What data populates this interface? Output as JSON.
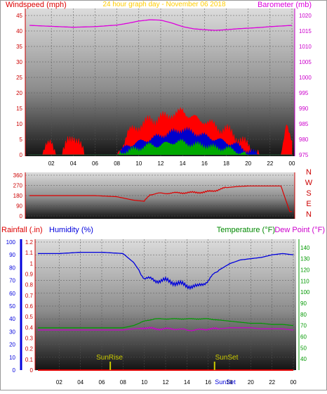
{
  "header": {
    "left_label": "Windspeed (mph)",
    "center_label": "24 hour graph day - November 06 2018",
    "right_label": "Barometer (mb)"
  },
  "colors": {
    "wind_red": "#ff0000",
    "wind_blue": "#0000cc",
    "wind_green": "#00aa00",
    "baro": "#dd00dd",
    "direction": "#dd0000",
    "rain": "#dd0000",
    "humidity": "#0000dd",
    "temperature": "#009900",
    "dewpoint": "#cc00cc",
    "sun": "#cccc00",
    "title": "#ffcc00"
  },
  "chart_data": [
    {
      "type": "line",
      "name": "wind-baro",
      "x_ticks": [
        "02",
        "04",
        "06",
        "08",
        "10",
        "12",
        "14",
        "16",
        "18",
        "20",
        "22",
        "00"
      ],
      "left_axis": {
        "label": "Windspeed (mph)",
        "range": [
          0,
          45
        ],
        "ticks": [
          "0",
          "5",
          "10",
          "15",
          "20",
          "25",
          "30",
          "35",
          "40",
          "45"
        ]
      },
      "right_axis": {
        "label": "Barometer (mb)",
        "range": [
          975,
          1020
        ],
        "ticks": [
          "975",
          "980",
          "985",
          "990",
          "995",
          "1000",
          "1005",
          "1010",
          "1015",
          "1020"
        ]
      },
      "series": [
        {
          "name": "Barometer (mb)",
          "x": [
            0,
            2,
            4,
            6,
            8,
            9,
            10,
            11,
            12,
            13,
            14,
            15,
            16,
            17,
            18,
            19,
            20,
            21,
            22,
            23,
            24
          ],
          "y": [
            1016.8,
            1016.5,
            1016.2,
            1016.4,
            1016.9,
            1017.5,
            1018.2,
            1018.6,
            1018.5,
            1017.6,
            1016.4,
            1015.7,
            1015.4,
            1015.2,
            1015.4,
            1015.7,
            1015.9,
            1016.1,
            1016.4,
            1016.6,
            1016.8
          ]
        },
        {
          "name": "Wind gust (mph)",
          "x": [
            0,
            1,
            1.5,
            2,
            2.5,
            3,
            3.5,
            4,
            4.5,
            5,
            5.5,
            6,
            7,
            8,
            8.5,
            9,
            9.5,
            10,
            10.5,
            11,
            11.5,
            12,
            12.5,
            13,
            13.5,
            14,
            14.5,
            15,
            15.5,
            16,
            16.5,
            17,
            17.5,
            18,
            18.5,
            19,
            19.5,
            20,
            21,
            22,
            23,
            23.5,
            24
          ],
          "y": [
            0,
            0,
            3,
            3,
            0,
            0,
            4,
            6,
            4,
            0,
            0,
            0,
            0,
            0,
            3,
            7,
            8,
            9,
            10,
            11,
            11,
            12,
            12,
            13,
            13,
            14,
            13,
            12,
            11,
            11,
            10,
            9,
            8,
            8,
            7,
            5,
            4,
            3,
            0,
            0,
            0,
            11,
            3
          ]
        },
        {
          "name": "Wind average (mph)",
          "x": [
            0,
            8,
            9,
            10,
            11,
            12,
            13,
            14,
            15,
            16,
            17,
            18,
            19,
            20,
            21,
            24
          ],
          "y": [
            0,
            0,
            3,
            4,
            5,
            6,
            7,
            8,
            7,
            6,
            5,
            4,
            3,
            1,
            0,
            0
          ]
        },
        {
          "name": "Wind minimum (mph)",
          "x": [
            0,
            8,
            9,
            10,
            11,
            12,
            13,
            14,
            15,
            16,
            17,
            18,
            19,
            20,
            21,
            24
          ],
          "y": [
            0,
            0,
            1,
            2,
            3,
            3,
            4,
            4,
            3,
            3,
            2,
            2,
            1,
            0,
            0,
            0
          ]
        }
      ]
    },
    {
      "type": "line",
      "name": "wind-direction",
      "left_axis": {
        "range": [
          0,
          360
        ],
        "ticks": [
          "0",
          "90",
          "180",
          "270",
          "360"
        ]
      },
      "right_labels": [
        "N",
        "W",
        "S",
        "E",
        "N"
      ],
      "series": [
        {
          "name": "Wind direction (deg)",
          "x": [
            0,
            6,
            8,
            9.5,
            10.5,
            11,
            12,
            14,
            16,
            17,
            18,
            19,
            20,
            21,
            22,
            23,
            23.8,
            24
          ],
          "y": [
            180,
            180,
            170,
            140,
            130,
            190,
            200,
            205,
            210,
            225,
            250,
            260,
            265,
            265,
            265,
            265,
            40,
            40
          ]
        }
      ]
    },
    {
      "type": "line",
      "name": "rain-humidity-temp",
      "labels": {
        "rainfall": "Rainfall (.in)",
        "humidity": "Humidity (%)",
        "temperature": "Temperature (°F)",
        "dewpoint": "Dew Point (°F)"
      },
      "rain_axis": {
        "range": [
          0,
          1.2
        ],
        "ticks": [
          "0",
          "0.1",
          "0.2",
          "0.3",
          "0.4",
          "0.5",
          "0.6",
          "0.7",
          "0.8",
          "0.9",
          "1",
          "1.1",
          "1.2"
        ]
      },
      "humidity_axis": {
        "range": [
          0,
          100
        ],
        "ticks": [
          "0",
          "10",
          "20",
          "30",
          "40",
          "50",
          "60",
          "70",
          "80",
          "90",
          "100"
        ]
      },
      "temp_axis": {
        "range": [
          30,
          145
        ],
        "ticks": [
          "40",
          "50",
          "60",
          "70",
          "80",
          "90",
          "100",
          "110",
          "120",
          "130",
          "140"
        ]
      },
      "x_ticks": [
        "02",
        "04",
        "06",
        "08",
        "10",
        "12",
        "14",
        "16",
        "18",
        "20",
        "22",
        "00"
      ],
      "series": [
        {
          "name": "Humidity (%)",
          "x": [
            0,
            2,
            4,
            6,
            8,
            9,
            10,
            11,
            12,
            13,
            14,
            15,
            16,
            17,
            18,
            19,
            20,
            21,
            22,
            23,
            24
          ],
          "y": [
            91,
            91,
            92,
            92,
            91,
            84,
            72,
            70,
            70,
            68,
            66,
            65,
            70,
            78,
            83,
            86,
            87,
            88,
            90,
            91,
            90
          ]
        },
        {
          "name": "Temperature (°F)",
          "x": [
            0,
            2,
            4,
            6,
            8,
            9,
            10,
            11,
            12,
            13,
            14,
            15,
            16,
            17,
            18,
            19,
            20,
            21,
            22,
            23,
            24
          ],
          "y": [
            68,
            68,
            68,
            68,
            68,
            70,
            74,
            76,
            76,
            76,
            76,
            76,
            76,
            75,
            74,
            73,
            72,
            72,
            71,
            71,
            70
          ]
        },
        {
          "name": "Dew Point (°F)",
          "x": [
            0,
            2,
            4,
            6,
            8,
            9,
            10,
            11,
            12,
            13,
            14,
            15,
            16,
            17,
            18,
            19,
            20,
            21,
            22,
            23,
            24
          ],
          "y": [
            66,
            66,
            66,
            66,
            66,
            67,
            68,
            67,
            67,
            67,
            66,
            66,
            67,
            67,
            68,
            68,
            68,
            67,
            67,
            67,
            66
          ]
        },
        {
          "name": "Rainfall (.in)",
          "x": [
            0,
            24
          ],
          "y": [
            0,
            0
          ]
        }
      ],
      "annotations": {
        "sunrise": "SunRise",
        "sunset": "SunSet",
        "sunrise_hour": 6.8,
        "sunset_hour": 16.6
      }
    }
  ]
}
